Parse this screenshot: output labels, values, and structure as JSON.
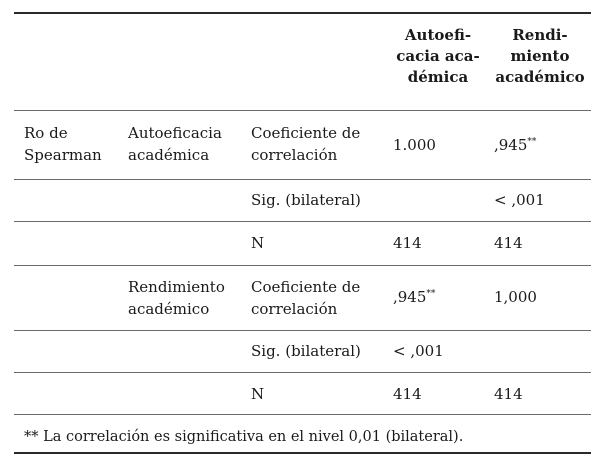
{
  "table": {
    "headers": {
      "col4": [
        "Autoefi-",
        "cacia aca-",
        "démica"
      ],
      "col5": [
        "Rendi-",
        "miento",
        "académico"
      ]
    },
    "group": [
      "Ro de",
      "Spearman"
    ],
    "rows": [
      {
        "var": [
          "Autoeficacia",
          "académica"
        ],
        "stat": [
          "Coeficiente de",
          "correlación"
        ],
        "v1": "1.000",
        "v2": ",945",
        "v2_sup": "**"
      },
      {
        "stat": [
          "Sig. (bilateral)"
        ],
        "v1": "",
        "v2": "< ,001"
      },
      {
        "stat": [
          "N"
        ],
        "v1": "414",
        "v2": "414"
      },
      {
        "var": [
          "Rendimiento",
          "académico"
        ],
        "stat": [
          "Coeficiente de",
          "correlación"
        ],
        "v1": ",945",
        "v1_sup": "**",
        "v2": "1,000"
      },
      {
        "stat": [
          "Sig. (bilateral)"
        ],
        "v1": "< ,001",
        "v2": ""
      },
      {
        "stat": [
          "N"
        ],
        "v1": "414",
        "v2": "414"
      }
    ],
    "footnote": "** La correlación es significativa en el nivel 0,01 (bilateral)."
  }
}
